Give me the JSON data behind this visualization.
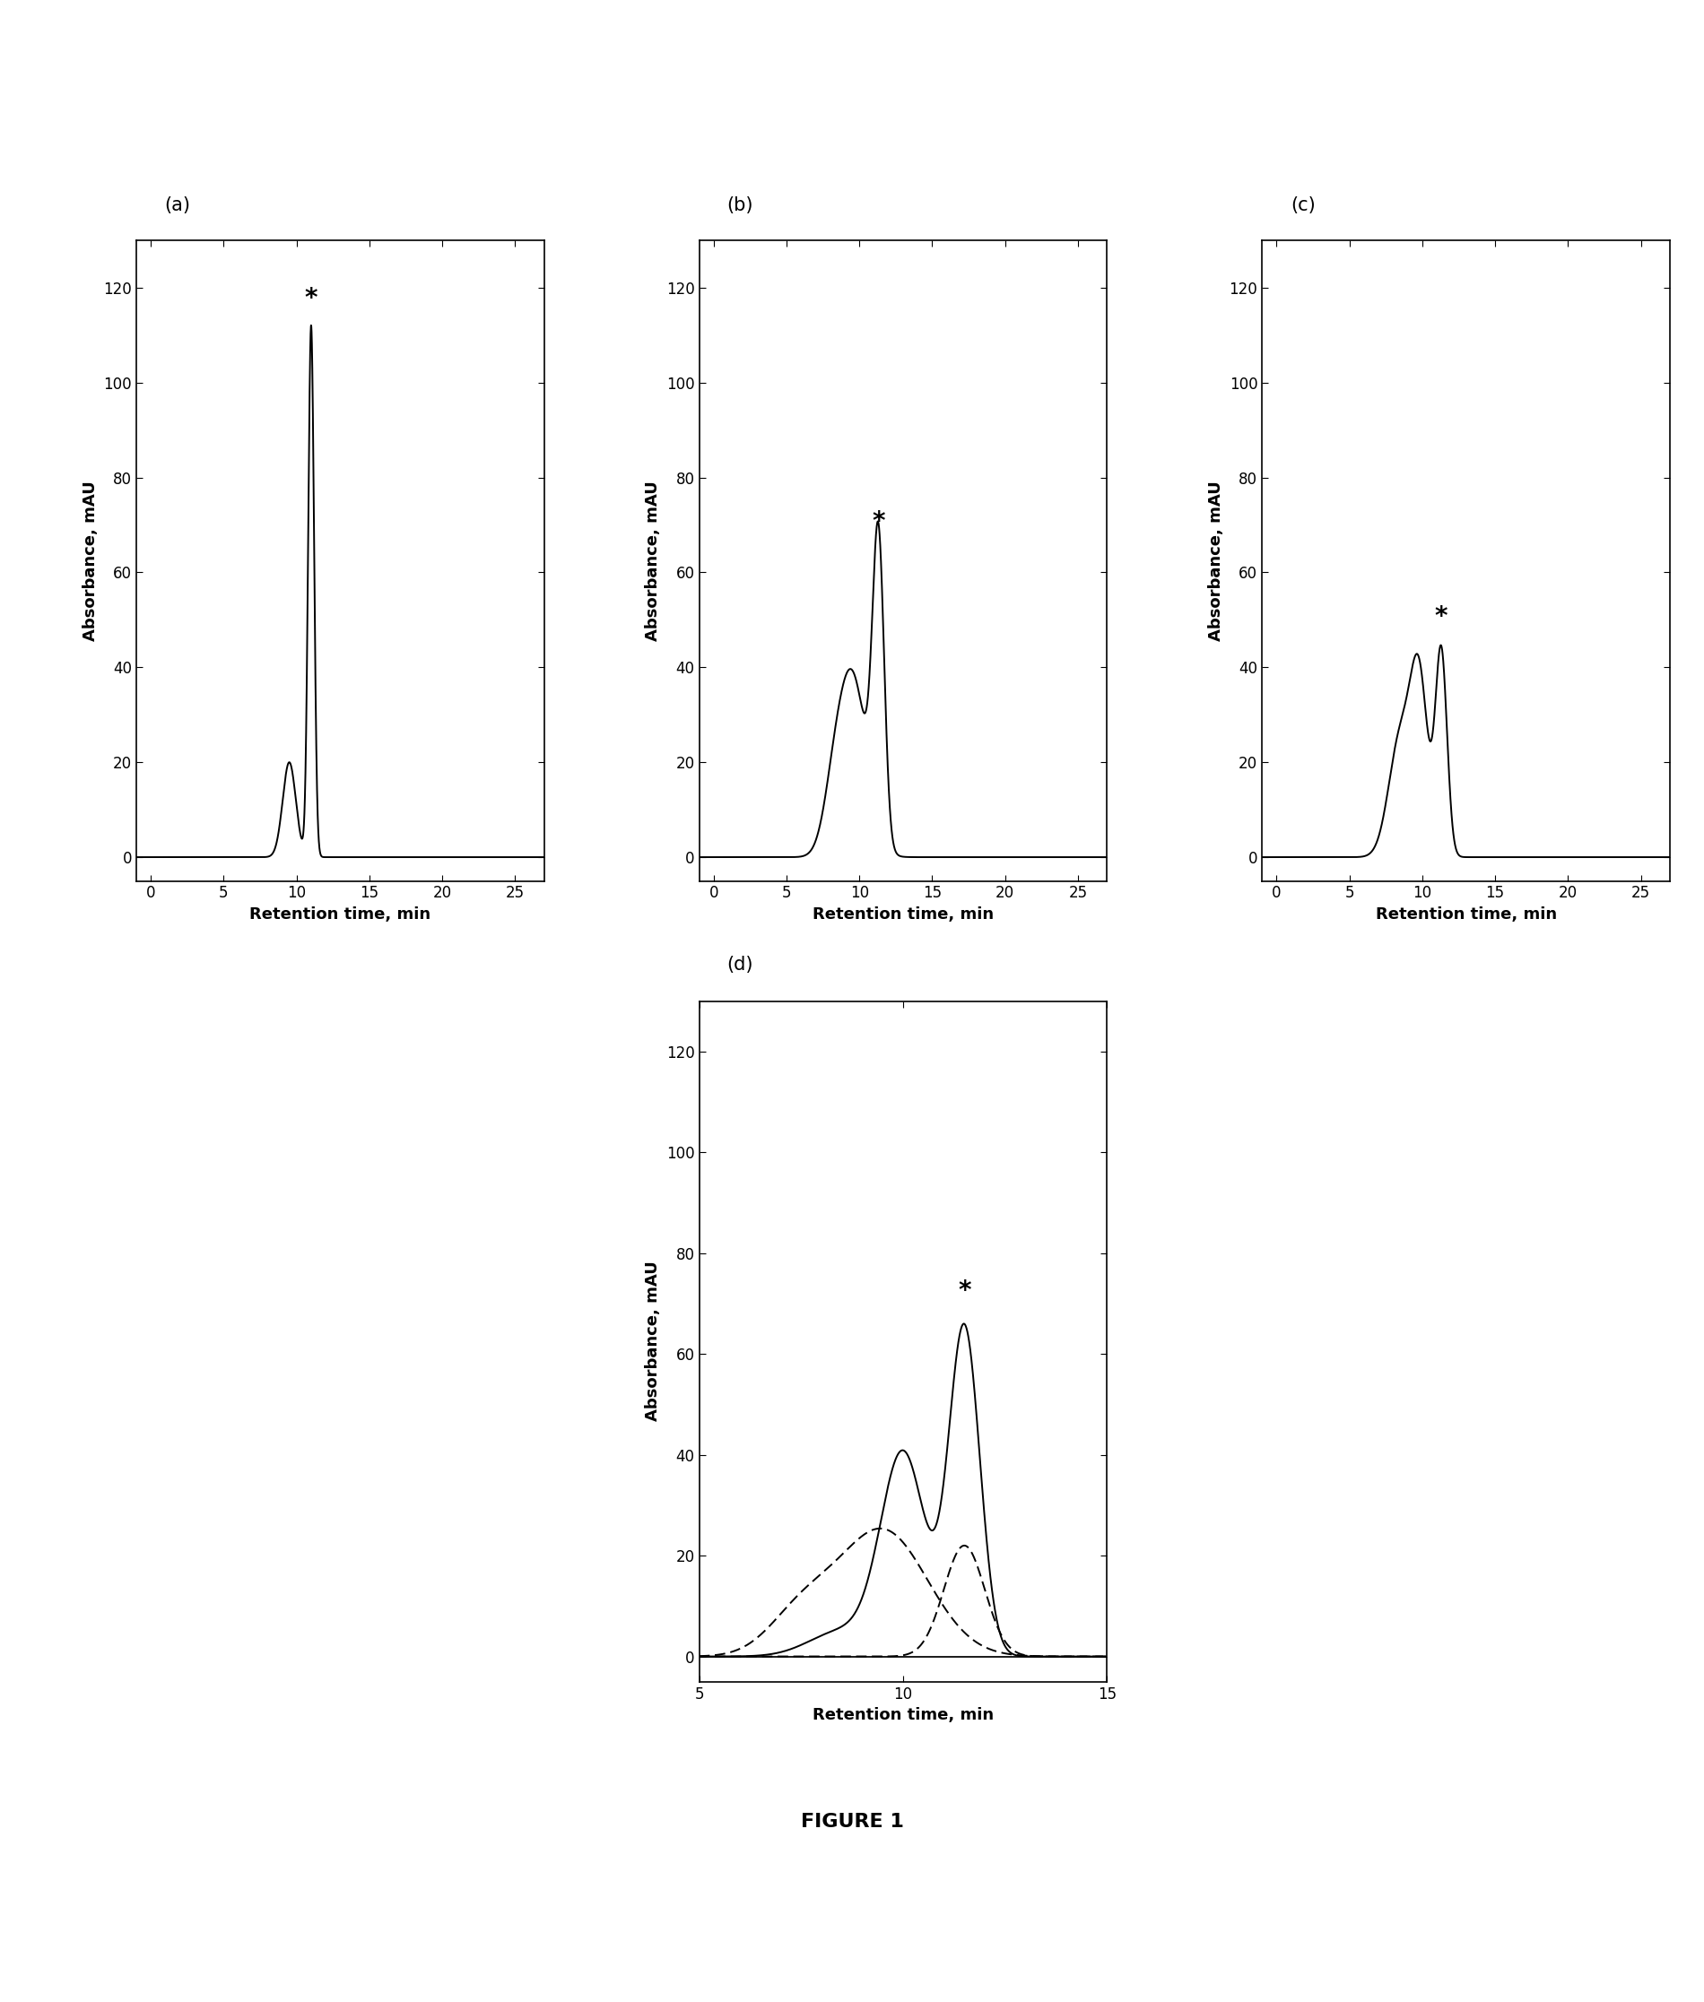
{
  "panel_a": {
    "label": "(a)",
    "xlabel": "Retention time, min",
    "ylabel": "Absorbance, mAU",
    "xlim": [
      -1,
      27
    ],
    "ylim": [
      -5,
      130
    ],
    "xticks": [
      0,
      5,
      10,
      15,
      20,
      25
    ],
    "yticks": [
      0,
      20,
      40,
      60,
      80,
      100,
      120
    ],
    "star_x": 11.0,
    "star_y": 115
  },
  "panel_b": {
    "label": "(b)",
    "xlabel": "Retention time, min",
    "ylabel": "Absorbance, mAU",
    "xlim": [
      -1,
      27
    ],
    "ylim": [
      -5,
      130
    ],
    "xticks": [
      0,
      5,
      10,
      15,
      20,
      25
    ],
    "yticks": [
      0,
      20,
      40,
      60,
      80,
      100,
      120
    ],
    "star_x": 11.3,
    "star_y": 68
  },
  "panel_c": {
    "label": "(c)",
    "xlabel": "Retention time, min",
    "ylabel": "Absorbance, mAU",
    "xlim": [
      -1,
      27
    ],
    "ylim": [
      -5,
      130
    ],
    "xticks": [
      0,
      5,
      10,
      15,
      20,
      25
    ],
    "yticks": [
      0,
      20,
      40,
      60,
      80,
      100,
      120
    ],
    "star_x": 11.3,
    "star_y": 48
  },
  "panel_d": {
    "label": "(d)",
    "xlabel": "Retention time, min",
    "ylabel": "Absorbance, mAU",
    "xlim": [
      5,
      15
    ],
    "ylim": [
      -5,
      130
    ],
    "xticks": [
      5,
      10,
      15
    ],
    "yticks": [
      0,
      20,
      40,
      60,
      80,
      100,
      120
    ],
    "star_x": 11.5,
    "star_y": 70
  },
  "figure_label": "FIGURE 1",
  "line_color": "#000000",
  "background_color": "#ffffff"
}
